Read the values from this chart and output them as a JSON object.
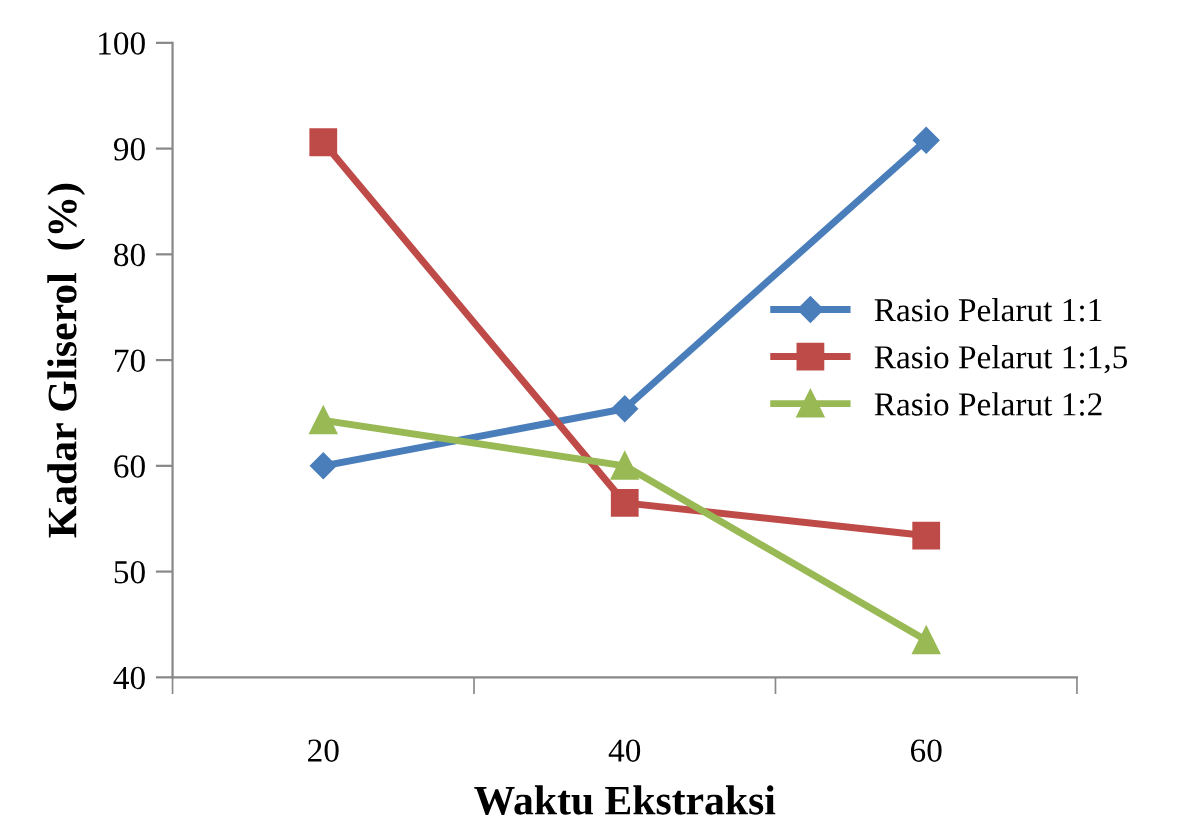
{
  "chart_data": {
    "type": "line",
    "xlabel": "Waktu Ekstraksi",
    "ylabel": "Kadar Gliserol  (%)",
    "categories": [
      "20",
      "40",
      "60"
    ],
    "series": [
      {
        "name": "Rasio Pelarut 1:1",
        "color": "#4a7ebb",
        "marker": "diamond",
        "values": [
          60.0,
          65.4,
          90.8
        ]
      },
      {
        "name": "Rasio Pelarut 1:1,5",
        "color": "#be4b48",
        "marker": "square",
        "values": [
          90.6,
          56.5,
          53.4
        ]
      },
      {
        "name": "Rasio Pelarut 1:2",
        "color": "#98b954",
        "marker": "triangle",
        "values": [
          64.3,
          60.0,
          43.5
        ]
      }
    ],
    "ylim": [
      40,
      100
    ],
    "yticks": [
      40,
      50,
      60,
      70,
      80,
      90,
      100
    ],
    "grid": false,
    "legend": "right",
    "line_style": "solid"
  }
}
